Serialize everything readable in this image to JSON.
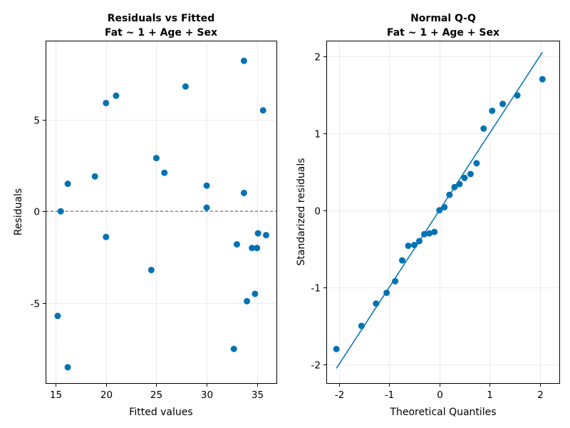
{
  "chart_data": [
    {
      "type": "scatter",
      "title_line1": "Residuals vs Fitted",
      "title_line2": "Fat ~ 1 + Age + Sex",
      "xlabel": "Fitted values",
      "ylabel": "Residuals",
      "xlim": [
        14,
        37
      ],
      "ylim": [
        -9.4,
        9.3
      ],
      "xticks": [
        15,
        20,
        25,
        30,
        35
      ],
      "xtick_labels": [
        "15",
        "20",
        "25",
        "30",
        "35"
      ],
      "yticks": [
        -5,
        0,
        5
      ],
      "ytick_labels": [
        "-5",
        "0",
        "5"
      ],
      "reference_line": {
        "y": 0,
        "style": "dashed",
        "color": "#888888"
      },
      "marker_color": "#0072b2",
      "points": [
        {
          "x": 15.2,
          "y": -5.7
        },
        {
          "x": 15.5,
          "y": 0.0
        },
        {
          "x": 16.2,
          "y": 1.5
        },
        {
          "x": 16.2,
          "y": -8.5
        },
        {
          "x": 18.9,
          "y": 1.9
        },
        {
          "x": 20.0,
          "y": 5.9
        },
        {
          "x": 20.0,
          "y": -1.4
        },
        {
          "x": 21.0,
          "y": 6.3
        },
        {
          "x": 24.5,
          "y": -3.2
        },
        {
          "x": 25.0,
          "y": 2.9
        },
        {
          "x": 25.8,
          "y": 2.1
        },
        {
          "x": 27.9,
          "y": 6.8
        },
        {
          "x": 30.0,
          "y": 1.4
        },
        {
          "x": 30.0,
          "y": 0.2
        },
        {
          "x": 32.7,
          "y": -7.5
        },
        {
          "x": 33.0,
          "y": -1.8
        },
        {
          "x": 33.7,
          "y": 8.2
        },
        {
          "x": 33.7,
          "y": 1.0
        },
        {
          "x": 34.0,
          "y": -4.9
        },
        {
          "x": 34.5,
          "y": -2.0
        },
        {
          "x": 34.8,
          "y": -4.5
        },
        {
          "x": 35.0,
          "y": -2.0
        },
        {
          "x": 35.1,
          "y": -1.2
        },
        {
          "x": 35.6,
          "y": 5.5
        },
        {
          "x": 35.9,
          "y": -1.3
        }
      ]
    },
    {
      "type": "scatter",
      "title_line1": "Normal Q-Q",
      "title_line2": "Fat ~ 1 + Age + Sex",
      "xlabel": "Theoretical Quantiles",
      "ylabel": "Standarized residuals",
      "xlim": [
        -2.25,
        2.4
      ],
      "ylim": [
        -2.25,
        2.2
      ],
      "xticks": [
        -2,
        -1,
        0,
        1,
        2
      ],
      "xtick_labels": [
        "-2",
        "-1",
        "0",
        "1",
        "2"
      ],
      "yticks": [
        -2,
        -1,
        0,
        1,
        2
      ],
      "ytick_labels": [
        "-2",
        "-1",
        "0",
        "1",
        "2"
      ],
      "reference_line": {
        "from": [
          -2.05,
          -2.05
        ],
        "to": [
          2.05,
          2.05
        ],
        "color": "#0072b2"
      },
      "marker_color": "#0072b2",
      "points": [
        {
          "x": -2.05,
          "y": -1.8
        },
        {
          "x": -1.55,
          "y": -1.5
        },
        {
          "x": -1.26,
          "y": -1.21
        },
        {
          "x": -1.05,
          "y": -1.07
        },
        {
          "x": -0.88,
          "y": -0.92
        },
        {
          "x": -0.74,
          "y": -0.65
        },
        {
          "x": -0.62,
          "y": -0.46
        },
        {
          "x": -0.5,
          "y": -0.45
        },
        {
          "x": -0.4,
          "y": -0.4
        },
        {
          "x": -0.3,
          "y": -0.31
        },
        {
          "x": -0.2,
          "y": -0.3
        },
        {
          "x": -0.1,
          "y": -0.28
        },
        {
          "x": 0.0,
          "y": 0.0
        },
        {
          "x": 0.1,
          "y": 0.04
        },
        {
          "x": 0.2,
          "y": 0.2
        },
        {
          "x": 0.3,
          "y": 0.3
        },
        {
          "x": 0.4,
          "y": 0.34
        },
        {
          "x": 0.5,
          "y": 0.42
        },
        {
          "x": 0.62,
          "y": 0.47
        },
        {
          "x": 0.74,
          "y": 0.61
        },
        {
          "x": 0.88,
          "y": 1.06
        },
        {
          "x": 1.05,
          "y": 1.29
        },
        {
          "x": 1.26,
          "y": 1.38
        },
        {
          "x": 1.55,
          "y": 1.49
        },
        {
          "x": 2.05,
          "y": 1.7
        }
      ]
    }
  ]
}
